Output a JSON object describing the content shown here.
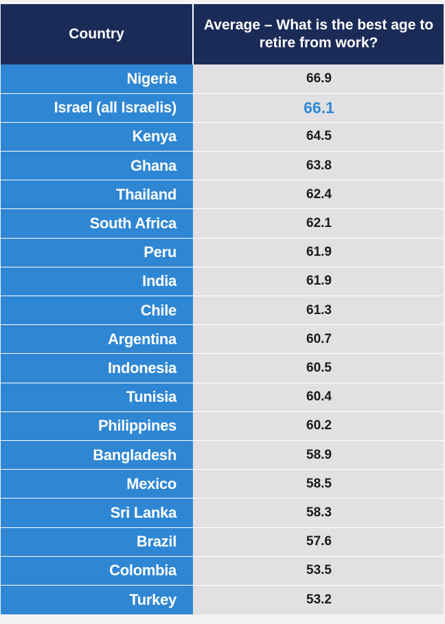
{
  "table": {
    "headers": {
      "country": "Country",
      "value": "Average – What is the best age to retire from work?"
    },
    "highlight_color": "#2f87d4",
    "header_color": "#1b2b57",
    "country_cell_color": "#2f87d4",
    "value_cell_color": "#e1e1e3"
  },
  "chart_data": {
    "type": "table",
    "columns": [
      "Country",
      "Average – What is the best age to retire from work?"
    ],
    "rows": [
      {
        "country": "Nigeria",
        "value": "66.9",
        "highlight": false
      },
      {
        "country": "Israel (all Israelis)",
        "value": "66.1",
        "highlight": true
      },
      {
        "country": "Kenya",
        "value": "64.5",
        "highlight": false
      },
      {
        "country": "Ghana",
        "value": "63.8",
        "highlight": false
      },
      {
        "country": "Thailand",
        "value": "62.4",
        "highlight": false
      },
      {
        "country": "South Africa",
        "value": "62.1",
        "highlight": false
      },
      {
        "country": "Peru",
        "value": "61.9",
        "highlight": false
      },
      {
        "country": "India",
        "value": "61.9",
        "highlight": false
      },
      {
        "country": "Chile",
        "value": "61.3",
        "highlight": false
      },
      {
        "country": "Argentina",
        "value": "60.7",
        "highlight": false
      },
      {
        "country": "Indonesia",
        "value": "60.5",
        "highlight": false
      },
      {
        "country": "Tunisia",
        "value": "60.4",
        "highlight": false
      },
      {
        "country": "Philippines",
        "value": "60.2",
        "highlight": false
      },
      {
        "country": "Bangladesh",
        "value": "58.9",
        "highlight": false
      },
      {
        "country": "Mexico",
        "value": "58.5",
        "highlight": false
      },
      {
        "country": "Sri Lanka",
        "value": "58.3",
        "highlight": false
      },
      {
        "country": "Brazil",
        "value": "57.6",
        "highlight": false
      },
      {
        "country": "Colombia",
        "value": "53.5",
        "highlight": false
      },
      {
        "country": "Turkey",
        "value": "53.2",
        "highlight": false
      }
    ]
  }
}
